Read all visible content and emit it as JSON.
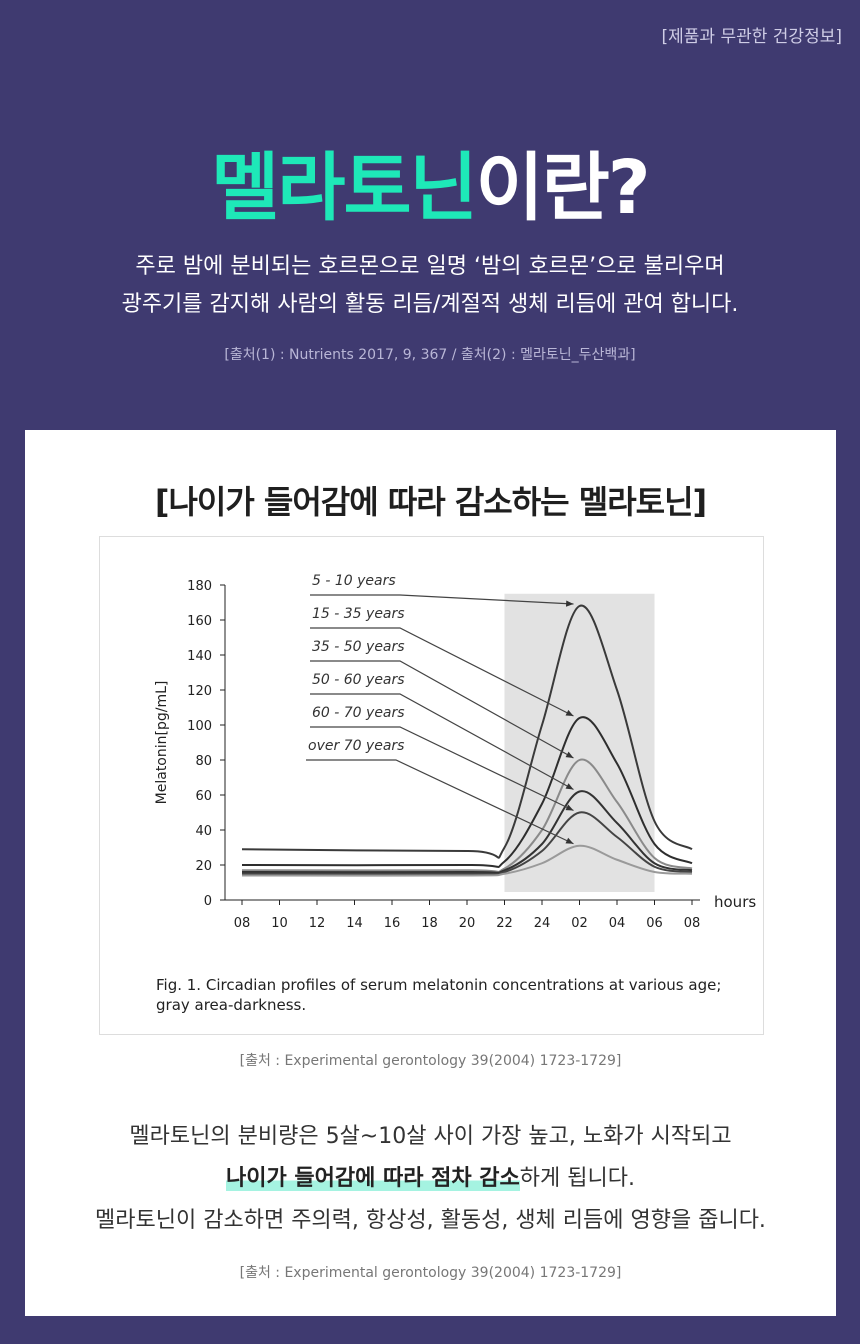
{
  "top_note": "[제품과 무관한 건강정보]",
  "headline": {
    "accent": "멜라토닌",
    "rest": "이란?"
  },
  "intro": {
    "line1": "주로 밤에 분비되는 호르몬으로 일명 ‘밤의 호르몬’으로 불리우며",
    "line2": "광주기를 감지해 사람의 활동 리듬/계절적 생체 리듬에 관여 합니다."
  },
  "source1": "[출처(1) : Nutrients 2017, 9, 367 / 출처(2) : 멜라토닌_두산백과]",
  "card": {
    "title": "[나이가 들어감에 따라 감소하는 멜라토닌]",
    "caption_line1": "Fig. 1. Circadian profiles of serum melatonin concentrations at various age;",
    "caption_line2": "gray area-darkness.",
    "source2": "[출처 : Experimental gerontology 39(2004) 1723-1729]",
    "body_line1": "멜라토닌의 분비량은 5살~10살 사이 가장 높고, 노화가 시작되고",
    "body_line2_highlight": "나이가 들어감에 따라 점차 감소",
    "body_line2_rest": "하게 됩니다.",
    "body_line3": "멜라토닌이 감소하면 주의력, 항상성, 활동성, 생체 리듬에 영향을 줍니다.",
    "source3": "[출처 : Experimental gerontology 39(2004) 1723-1729]"
  },
  "chart_data": {
    "type": "line",
    "ylabel": "Melatonin[pg/mL]",
    "xlabel": "hours",
    "ylim": [
      0,
      180
    ],
    "yticks": [
      0,
      20,
      40,
      60,
      80,
      100,
      120,
      140,
      160,
      180
    ],
    "xtick_labels": [
      "08",
      "10",
      "12",
      "14",
      "16",
      "18",
      "20",
      "22",
      "24",
      "02",
      "04",
      "06",
      "08"
    ],
    "x": [
      8,
      20,
      22,
      24,
      26,
      28,
      30,
      32
    ],
    "darkness_band": [
      22,
      30
    ],
    "grid": false,
    "series": [
      {
        "name": "5 - 10 years",
        "color": "#3a3a3a",
        "values": [
          29,
          28,
          30,
          100,
          168,
          120,
          45,
          29
        ]
      },
      {
        "name": "15 - 35 years",
        "color": "#2e2e2e",
        "values": [
          20,
          20,
          22,
          55,
          104,
          78,
          32,
          21
        ]
      },
      {
        "name": "35 - 50 years",
        "color": "#8a8a8a",
        "values": [
          17,
          17,
          18,
          40,
          80,
          56,
          24,
          18
        ]
      },
      {
        "name": "50 - 60 years",
        "color": "#333333",
        "values": [
          16,
          16,
          17,
          32,
          62,
          44,
          21,
          17
        ]
      },
      {
        "name": "60 - 70 years",
        "color": "#444444",
        "values": [
          15,
          15,
          16,
          28,
          50,
          36,
          19,
          16
        ]
      },
      {
        "name": "over 70 years",
        "color": "#9a9a9a",
        "values": [
          14,
          14,
          15,
          21,
          31,
          23,
          16,
          15
        ]
      }
    ]
  }
}
